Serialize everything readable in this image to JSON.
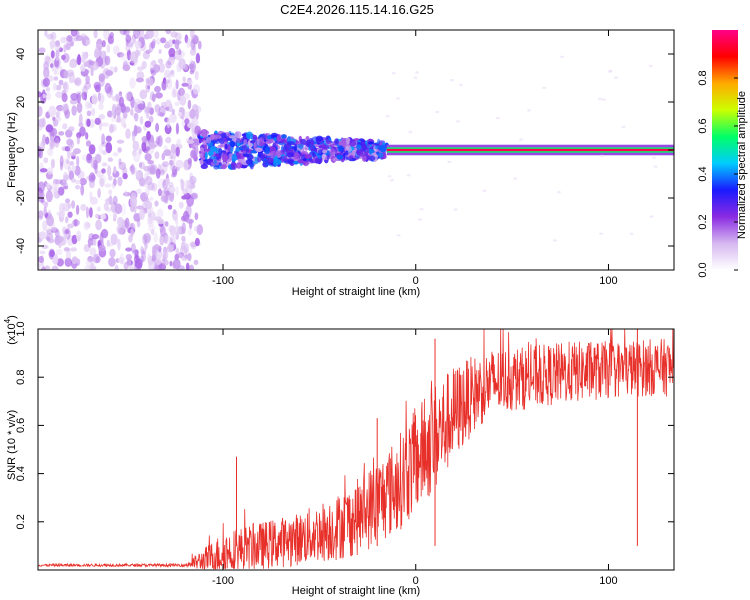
{
  "title": "C2E4.2026.115.14.16.G25",
  "colors": {
    "signal": "#e8302a",
    "scatter": "#7a20d8",
    "frame": "#000000"
  },
  "chart_data": [
    {
      "type": "heatmap",
      "xlabel": "Height of straight line (km)",
      "ylabel": "Frequency (Hz)",
      "xlim": [
        -196,
        134
      ],
      "ylim": [
        -50,
        50
      ],
      "xticks": [
        -100,
        0,
        100
      ],
      "yticks": [
        -40,
        -20,
        0,
        20,
        40
      ],
      "colorbar": {
        "label": "Normalized spectral amplitude",
        "range": [
          0,
          1
        ],
        "ticks": [
          "0.0",
          "0.2",
          "0.4",
          "0.6",
          "0.8"
        ],
        "tick_values": [
          0,
          0.2,
          0.4,
          0.6,
          0.8
        ],
        "colormap": [
          "#ffffff",
          "#d6b8f0",
          "#8a2be2",
          "#1a1aff",
          "#00ccff",
          "#00ff66",
          "#ccff00",
          "#ffaa00",
          "#ff0000",
          "#ff0088"
        ]
      },
      "regions": [
        {
          "description": "noise",
          "x_range": [
            -196,
            -112
          ],
          "freq_range": [
            -50,
            50
          ],
          "amplitude": 0.1
        },
        {
          "description": "broadband",
          "x_range": [
            -112,
            -15
          ],
          "freq_range": [
            -8,
            8
          ],
          "amplitude": 0.35
        },
        {
          "description": "tone",
          "x_range": [
            -15,
            134
          ],
          "freq_range": [
            -1,
            1
          ],
          "amplitude": 0.95
        }
      ]
    },
    {
      "type": "line",
      "xlabel": "Height of straight line (km)",
      "ylabel": "SNR (10 * v/v)",
      "exponent_label": "(x10",
      "exponent_power": "4",
      "exponent_close": ")",
      "xlim": [
        -196,
        134
      ],
      "ylim": [
        0,
        1.0
      ],
      "xticks": [
        -100,
        0,
        100
      ],
      "yticks": [
        "0.2",
        "0.4",
        "0.6",
        "0.8",
        "1.0"
      ],
      "ytick_values": [
        0.2,
        0.4,
        0.6,
        0.8,
        1.0
      ],
      "series": [
        {
          "name": "SNR",
          "envelope_x": [
            -196,
            -120,
            -110,
            -100,
            -80,
            -60,
            -40,
            -30,
            -20,
            -10,
            0,
            10,
            20,
            30,
            40,
            60,
            80,
            100,
            120,
            134
          ],
          "envelope_mean": [
            0.02,
            0.02,
            0.04,
            0.07,
            0.1,
            0.13,
            0.18,
            0.22,
            0.28,
            0.35,
            0.45,
            0.55,
            0.65,
            0.73,
            0.78,
            0.8,
            0.82,
            0.83,
            0.84,
            0.84
          ],
          "envelope_spread": [
            0.005,
            0.006,
            0.05,
            0.09,
            0.1,
            0.11,
            0.14,
            0.16,
            0.18,
            0.2,
            0.22,
            0.23,
            0.2,
            0.16,
            0.14,
            0.13,
            0.13,
            0.12,
            0.12,
            0.12
          ],
          "peaks": [
            {
              "x": -93,
              "y": 0.47
            },
            {
              "x": 10,
              "y": 0.96
            },
            {
              "x": -20,
              "y": 0.63
            },
            {
              "x": 115,
              "y": 1.0
            }
          ]
        }
      ]
    }
  ]
}
